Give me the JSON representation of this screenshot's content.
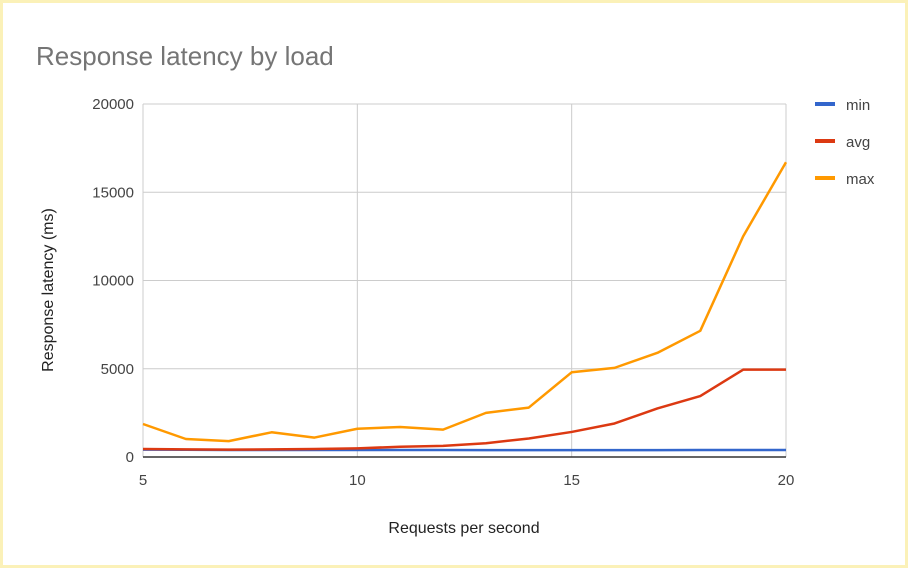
{
  "chart_data": {
    "type": "line",
    "title": "Response latency by load",
    "xlabel": "Requests per second",
    "ylabel": "Response latency (ms)",
    "xlim": [
      5,
      20
    ],
    "ylim": [
      0,
      20000
    ],
    "xticks": [
      5,
      10,
      15,
      20
    ],
    "yticks": [
      0,
      5000,
      10000,
      15000,
      20000
    ],
    "grid": true,
    "legend": "right",
    "x": [
      5,
      6,
      7,
      8,
      9,
      10,
      11,
      12,
      13,
      14,
      15,
      16,
      17,
      18,
      19,
      20
    ],
    "series": [
      {
        "name": "min",
        "color": "#3366cc",
        "values": [
          420,
          410,
          400,
          400,
          400,
          400,
          400,
          400,
          390,
          390,
          390,
          390,
          390,
          400,
          400,
          400
        ]
      },
      {
        "name": "avg",
        "color": "#dc3912",
        "values": [
          450,
          430,
          420,
          430,
          450,
          490,
          580,
          630,
          780,
          1050,
          1420,
          1900,
          2750,
          3450,
          4950,
          4950
        ]
      },
      {
        "name": "max",
        "color": "#ff9900",
        "values": [
          1870,
          1020,
          900,
          1400,
          1100,
          1600,
          1700,
          1550,
          2500,
          2800,
          4800,
          5050,
          5900,
          7150,
          12500,
          16700
        ]
      }
    ]
  }
}
